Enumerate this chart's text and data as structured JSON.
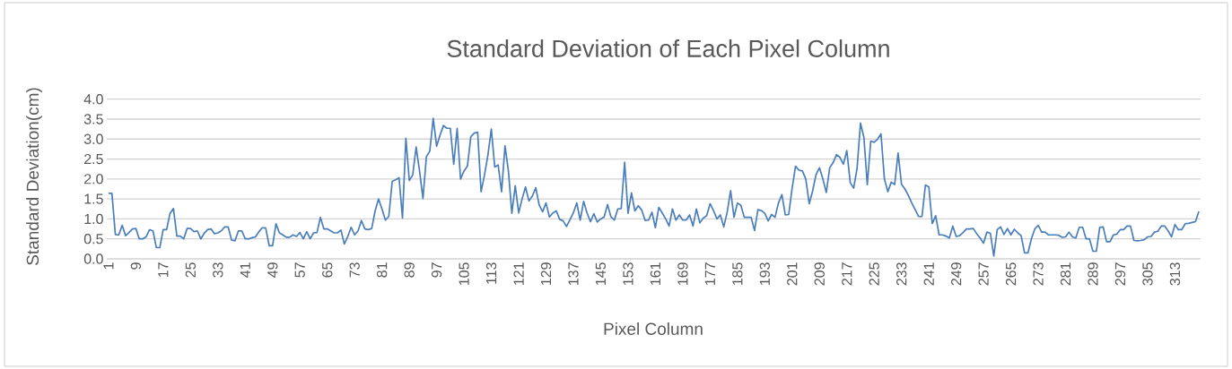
{
  "chart_data": {
    "type": "line",
    "title": "Standard Deviation of Each Pixel Column",
    "xlabel": "Pixel Column",
    "ylabel": "Standard Deviation(cm)",
    "x": [
      1,
      2,
      3,
      4,
      5,
      6,
      7,
      8,
      9,
      10,
      11,
      12,
      13,
      14,
      15,
      16,
      17,
      18,
      19,
      20,
      21,
      22,
      23,
      24,
      25,
      26,
      27,
      28,
      29,
      30,
      31,
      32,
      33,
      34,
      35,
      36,
      37,
      38,
      39,
      40,
      41,
      42,
      43,
      44,
      45,
      46,
      47,
      48,
      49,
      50,
      51,
      52,
      53,
      54,
      55,
      56,
      57,
      58,
      59,
      60,
      61,
      62,
      63,
      64,
      65,
      66,
      67,
      68,
      69,
      70,
      71,
      72,
      73,
      74,
      75,
      76,
      77,
      78,
      79,
      80,
      81,
      82,
      83,
      84,
      85,
      86,
      87,
      88,
      89,
      90,
      91,
      92,
      93,
      94,
      95,
      96,
      97,
      98,
      99,
      100,
      101,
      102,
      103,
      104,
      105,
      106,
      107,
      108,
      109,
      110,
      111,
      112,
      113,
      114,
      115,
      116,
      117,
      118,
      119,
      120,
      121,
      122,
      123,
      124,
      125,
      126,
      127,
      128,
      129,
      130,
      131,
      132,
      133,
      134,
      135,
      136,
      137,
      138,
      139,
      140,
      141,
      142,
      143,
      144,
      145,
      146,
      147,
      148,
      149,
      150,
      151,
      152,
      153,
      154,
      155,
      156,
      157,
      158,
      159,
      160,
      161,
      162,
      163,
      164,
      165,
      166,
      167,
      168,
      169,
      170,
      171,
      172,
      173,
      174,
      175,
      176,
      177,
      178,
      179,
      180,
      181,
      182,
      183,
      184,
      185,
      186,
      187,
      188,
      189,
      190,
      191,
      192,
      193,
      194,
      195,
      196,
      197,
      198,
      199,
      200,
      201,
      202,
      203,
      204,
      205,
      206,
      207,
      208,
      209,
      210,
      211,
      212,
      213,
      214,
      215,
      216,
      217,
      218,
      219,
      220,
      221,
      222,
      223,
      224,
      225,
      226,
      227,
      228,
      229,
      230,
      231,
      232,
      233,
      234,
      235,
      236,
      237,
      238,
      239,
      240,
      241,
      242,
      243,
      244,
      245,
      246,
      247,
      248,
      249,
      250,
      251,
      252,
      253,
      254,
      255,
      256,
      257,
      258,
      259,
      260,
      261,
      262,
      263,
      264,
      265,
      266,
      267,
      268,
      269,
      270,
      271,
      272,
      273,
      274,
      275,
      276,
      277,
      278,
      279,
      280,
      281,
      282,
      283,
      284,
      285,
      286,
      287,
      288,
      289,
      290,
      291,
      292,
      293,
      294,
      295,
      296,
      297,
      298,
      299,
      300,
      301,
      302,
      303,
      304,
      305,
      306,
      307,
      308,
      309,
      310,
      311,
      312,
      313,
      314,
      315,
      316,
      317,
      318,
      319,
      320
    ],
    "series": [
      {
        "color": "#4a7ebb",
        "values": [
          1.64,
          1.64,
          0.61,
          0.6,
          0.84,
          0.58,
          0.66,
          0.75,
          0.76,
          0.5,
          0.5,
          0.55,
          0.73,
          0.7,
          0.28,
          0.28,
          0.73,
          0.73,
          1.14,
          1.26,
          0.57,
          0.57,
          0.5,
          0.76,
          0.76,
          0.68,
          0.7,
          0.5,
          0.64,
          0.73,
          0.75,
          0.63,
          0.65,
          0.7,
          0.8,
          0.8,
          0.47,
          0.45,
          0.7,
          0.7,
          0.5,
          0.5,
          0.53,
          0.55,
          0.68,
          0.78,
          0.77,
          0.33,
          0.33,
          0.88,
          0.65,
          0.6,
          0.54,
          0.54,
          0.6,
          0.56,
          0.66,
          0.5,
          0.68,
          0.5,
          0.65,
          0.66,
          1.04,
          0.75,
          0.75,
          0.7,
          0.65,
          0.65,
          0.72,
          0.37,
          0.56,
          0.79,
          0.6,
          0.7,
          0.96,
          0.75,
          0.73,
          0.76,
          1.2,
          1.5,
          1.25,
          0.97,
          1.06,
          1.94,
          1.98,
          2.03,
          1.02,
          3.02,
          1.96,
          2.1,
          2.8,
          2.2,
          1.51,
          2.56,
          2.7,
          3.52,
          2.82,
          3.1,
          3.34,
          3.27,
          3.27,
          2.37,
          3.27,
          2.0,
          2.2,
          2.32,
          3.06,
          3.15,
          3.17,
          1.68,
          2.1,
          2.6,
          3.25,
          2.3,
          2.35,
          1.68,
          2.83,
          2.2,
          1.14,
          1.83,
          1.15,
          1.5,
          1.8,
          1.45,
          1.57,
          1.78,
          1.35,
          1.18,
          1.4,
          1.05,
          1.15,
          1.2,
          0.99,
          0.95,
          0.81,
          0.98,
          1.15,
          1.4,
          0.97,
          1.44,
          1.15,
          0.93,
          1.13,
          0.92,
          1.0,
          1.05,
          1.36,
          1.05,
          0.97,
          1.25,
          1.26,
          2.42,
          1.14,
          1.65,
          1.2,
          1.33,
          1.22,
          0.96,
          0.97,
          1.17,
          0.78,
          1.29,
          1.15,
          1.0,
          0.82,
          1.25,
          0.97,
          1.1,
          0.97,
          0.97,
          1.1,
          0.82,
          1.25,
          0.9,
          1.02,
          1.08,
          1.38,
          1.21,
          1.0,
          1.1,
          0.8,
          1.17,
          1.71,
          1.04,
          1.4,
          1.34,
          1.04,
          1.04,
          1.04,
          0.71,
          1.23,
          1.21,
          1.14,
          0.95,
          1.11,
          1.04,
          1.4,
          1.61,
          1.1,
          1.11,
          1.77,
          2.32,
          2.22,
          2.2,
          2.0,
          1.38,
          1.7,
          2.11,
          2.28,
          2.0,
          1.66,
          2.28,
          2.41,
          2.61,
          2.54,
          2.37,
          2.71,
          1.91,
          1.77,
          2.26,
          3.4,
          3.04,
          1.86,
          2.95,
          2.92,
          3.0,
          3.13,
          2.0,
          1.68,
          1.92,
          1.86,
          2.65,
          1.87,
          1.75,
          1.59,
          1.4,
          1.23,
          1.06,
          1.06,
          1.85,
          1.8,
          0.88,
          1.08,
          0.6,
          0.6,
          0.57,
          0.52,
          0.82,
          0.56,
          0.58,
          0.66,
          0.75,
          0.75,
          0.76,
          0.63,
          0.52,
          0.39,
          0.67,
          0.64,
          0.07,
          0.73,
          0.8,
          0.61,
          0.76,
          0.6,
          0.74,
          0.65,
          0.58,
          0.15,
          0.15,
          0.5,
          0.75,
          0.84,
          0.67,
          0.67,
          0.6,
          0.6,
          0.6,
          0.59,
          0.54,
          0.55,
          0.67,
          0.55,
          0.52,
          0.79,
          0.79,
          0.5,
          0.5,
          0.19,
          0.19,
          0.79,
          0.8,
          0.43,
          0.43,
          0.6,
          0.62,
          0.73,
          0.73,
          0.82,
          0.82,
          0.46,
          0.45,
          0.46,
          0.48,
          0.55,
          0.56,
          0.67,
          0.69,
          0.82,
          0.82,
          0.7,
          0.55,
          0.86,
          0.73,
          0.73,
          0.88,
          0.89,
          0.91,
          0.93,
          1.19
        ]
      }
    ],
    "xlim": [
      0.5,
      320.5
    ],
    "xticks": [
      1,
      9,
      17,
      25,
      33,
      41,
      49,
      57,
      65,
      73,
      81,
      89,
      97,
      105,
      113,
      121,
      129,
      137,
      145,
      153,
      161,
      169,
      177,
      185,
      193,
      201,
      209,
      217,
      225,
      233,
      241,
      249,
      257,
      265,
      273,
      281,
      289,
      297,
      305,
      313
    ],
    "ylim": [
      0,
      4
    ],
    "yticks": [
      {
        "value": 0,
        "label": "0.0"
      },
      {
        "value": 0.5,
        "label": "0.5"
      },
      {
        "value": 1,
        "label": "1.0"
      },
      {
        "value": 1.5,
        "label": "1.5"
      },
      {
        "value": 2,
        "label": "2.0"
      },
      {
        "value": 2.5,
        "label": "2.5"
      },
      {
        "value": 3,
        "label": "3.0"
      },
      {
        "value": 3.5,
        "label": "3.5"
      },
      {
        "value": 4,
        "label": "4.0"
      }
    ],
    "grid": "y",
    "legend": false,
    "marker": "none",
    "line_style": "solid"
  }
}
